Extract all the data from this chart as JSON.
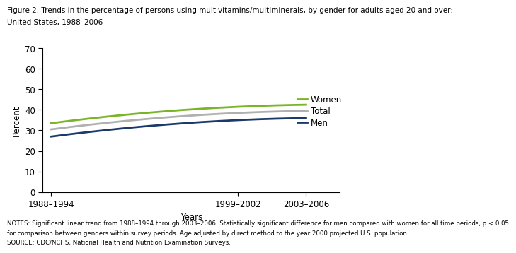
{
  "title_line1": "Figure 2. Trends in the percentage of persons using multivitamins/multiminerals, by gender for adults aged 20 and over:",
  "title_line2": "United States, 1988–2006",
  "xlabel": "Years",
  "ylabel": "Percent",
  "x_tick_positions": [
    0,
    11,
    15
  ],
  "x_tick_labels": [
    "1988–1994",
    "1999–2002",
    "2003–2006"
  ],
  "xlim": [
    -0.5,
    17
  ],
  "ylim": [
    0,
    70
  ],
  "yticks": [
    0,
    10,
    20,
    30,
    40,
    50,
    60,
    70
  ],
  "notes_line1": "NOTES: Significant linear trend from 1988–1994 through 2003–2006. Statistically significant difference for men compared with women for all time periods, p < 0.05",
  "notes_line2": "for comparison between genders within survey periods. Age adjusted by direct method to the year 2000 projected U.S. population.",
  "notes_line3": "SOURCE: CDC/NCHS, National Health and Nutrition Examination Surveys.",
  "series": [
    {
      "label": "Women",
      "color": "#7ab527",
      "x": [
        0,
        11,
        15
      ],
      "y": [
        33.5,
        41.5,
        42.5
      ]
    },
    {
      "label": "Total",
      "color": "#b0b0b0",
      "x": [
        0,
        11,
        15
      ],
      "y": [
        30.5,
        38.5,
        39.5
      ]
    },
    {
      "label": "Men",
      "color": "#1b3a6b",
      "x": [
        0,
        11,
        15
      ],
      "y": [
        27.0,
        35.0,
        36.0
      ]
    }
  ],
  "background_color": "#ffffff",
  "title_fontsize": 7.5,
  "axis_label_fontsize": 8.5,
  "tick_fontsize": 8.5,
  "legend_fontsize": 8.5,
  "notes_fontsize": 6.2
}
